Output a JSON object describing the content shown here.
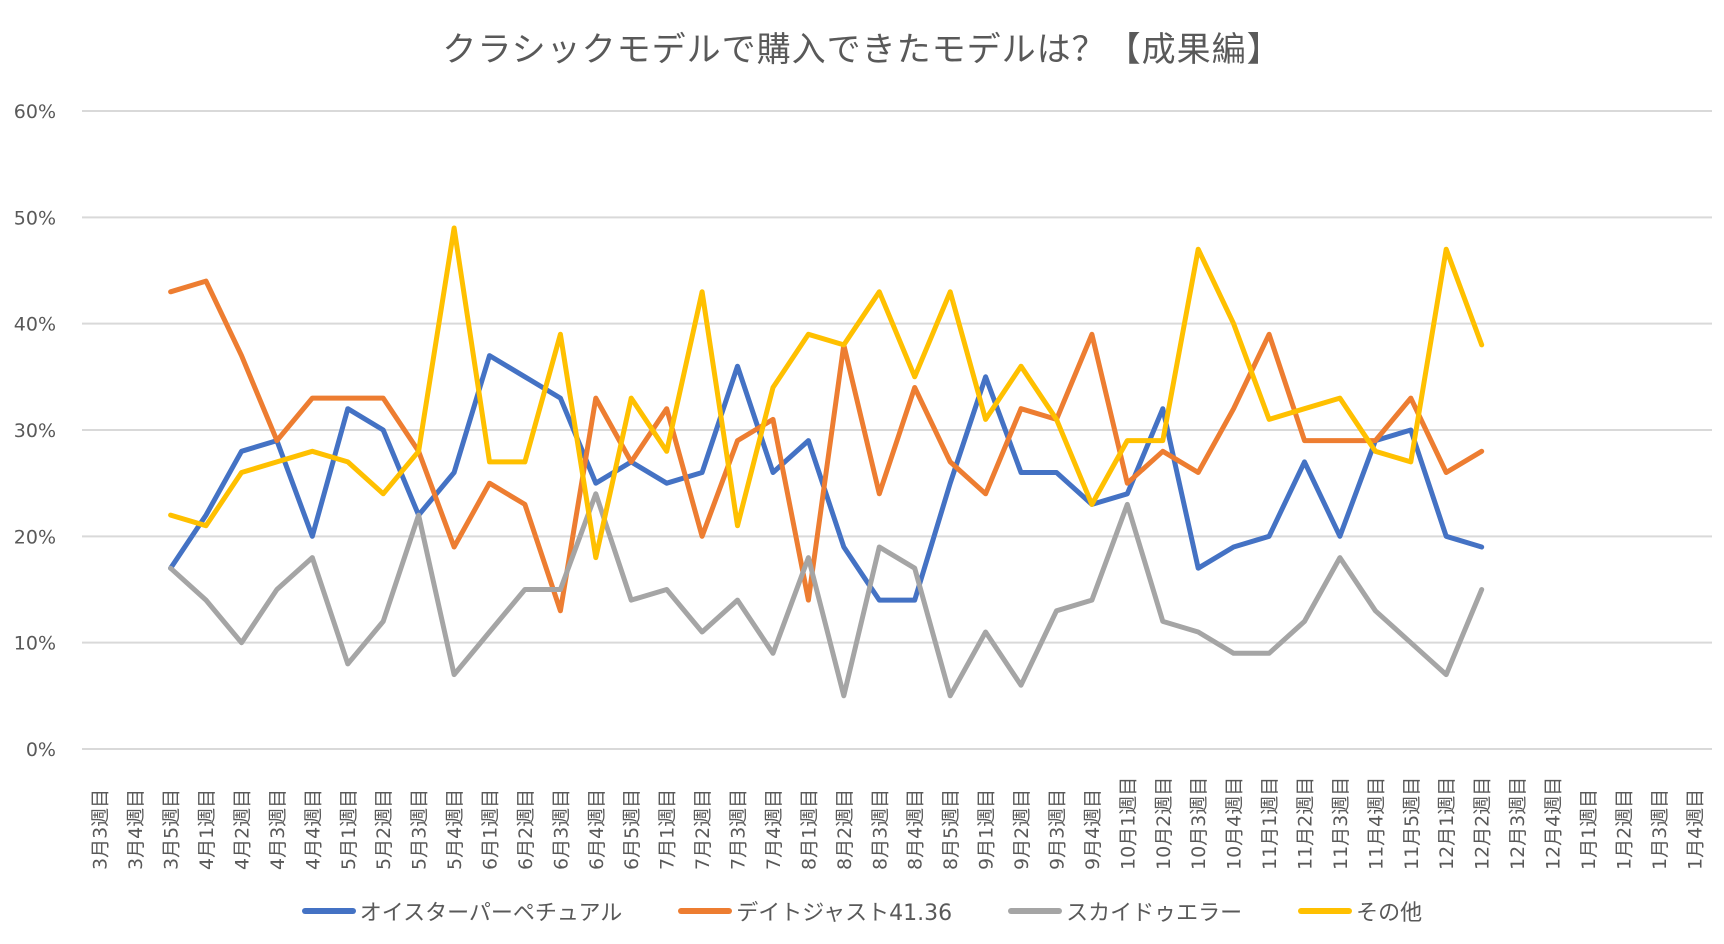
{
  "chart_data": {
    "type": "line",
    "title": "クラシックモデルで購入できたモデルは？【成果編】",
    "xlabel": "",
    "ylabel": "",
    "ylim": [
      0,
      0.6
    ],
    "yticks": [
      "0%",
      "10%",
      "20%",
      "30%",
      "40%",
      "50%",
      "60%"
    ],
    "ytick_values": [
      0,
      0.1,
      0.2,
      0.3,
      0.4,
      0.5,
      0.6
    ],
    "grid": true,
    "legend_position": "bottom",
    "categories": [
      "3月3週目",
      "3月4週目",
      "3月5週目",
      "4月1週目",
      "4月2週目",
      "4月3週目",
      "4月4週目",
      "5月1週目",
      "5月2週目",
      "5月3週目",
      "5月4週目",
      "6月1週目",
      "6月2週目",
      "6月3週目",
      "6月4週目",
      "6月5週目",
      "7月1週目",
      "7月2週目",
      "7月3週目",
      "7月4週目",
      "8月1週目",
      "8月2週目",
      "8月3週目",
      "8月4週目",
      "8月5週目",
      "9月1週目",
      "9月2週目",
      "9月3週目",
      "9月4週目",
      "10月1週目",
      "10月2週目",
      "10月3週目",
      "10月4週目",
      "11月1週目",
      "11月2週目",
      "11月3週目",
      "11月4週目",
      "11月5週目",
      "12月1週目",
      "12月2週目",
      "12月3週目",
      "12月4週目",
      "1月1週目",
      "1月2週目",
      "1月3週目",
      "1月4週目"
    ],
    "series": [
      {
        "name": "オイスターパーペチュアル",
        "color": "#4472C4",
        "values": [
          null,
          null,
          0.17,
          0.22,
          0.28,
          0.29,
          0.2,
          0.32,
          0.3,
          0.22,
          0.26,
          0.37,
          0.35,
          0.33,
          0.25,
          0.27,
          0.25,
          0.26,
          0.36,
          0.26,
          0.29,
          0.19,
          0.14,
          0.14,
          0.25,
          0.35,
          0.26,
          0.26,
          0.23,
          0.24,
          0.32,
          0.17,
          0.19,
          0.2,
          0.27,
          0.2,
          0.29,
          0.3,
          0.2,
          0.19,
          null,
          null,
          null,
          null,
          null,
          null
        ]
      },
      {
        "name": "デイトジャスト41.36",
        "color": "#ED7D31",
        "values": [
          null,
          null,
          0.43,
          0.44,
          0.37,
          0.29,
          0.33,
          0.33,
          0.33,
          0.28,
          0.19,
          0.25,
          0.23,
          0.13,
          0.33,
          0.27,
          0.32,
          0.2,
          0.29,
          0.31,
          0.14,
          0.38,
          0.24,
          0.34,
          0.27,
          0.24,
          0.32,
          0.31,
          0.39,
          0.25,
          0.28,
          0.26,
          0.32,
          0.39,
          0.29,
          0.29,
          0.29,
          0.33,
          0.26,
          0.28,
          null,
          null,
          null,
          null,
          null,
          null
        ]
      },
      {
        "name": "スカイドゥエラー",
        "color": "#A5A5A5",
        "values": [
          null,
          null,
          0.17,
          0.14,
          0.1,
          0.15,
          0.18,
          0.08,
          0.12,
          0.22,
          0.07,
          0.11,
          0.15,
          0.15,
          0.24,
          0.14,
          0.15,
          0.11,
          0.14,
          0.09,
          0.18,
          0.05,
          0.19,
          0.17,
          0.05,
          0.11,
          0.06,
          0.13,
          0.14,
          0.23,
          0.12,
          0.11,
          0.09,
          0.09,
          0.12,
          0.18,
          0.13,
          0.1,
          0.07,
          0.15,
          null,
          null,
          null,
          null,
          null,
          null
        ]
      },
      {
        "name": "その他",
        "color": "#FFC000",
        "values": [
          null,
          null,
          0.22,
          0.21,
          0.26,
          0.27,
          0.28,
          0.27,
          0.24,
          0.28,
          0.49,
          0.27,
          0.27,
          0.39,
          0.18,
          0.33,
          0.28,
          0.43,
          0.21,
          0.34,
          0.39,
          0.38,
          0.43,
          0.35,
          0.43,
          0.31,
          0.36,
          0.31,
          0.23,
          0.29,
          0.29,
          0.47,
          0.4,
          0.31,
          0.32,
          0.33,
          0.28,
          0.27,
          0.47,
          0.38,
          null,
          null,
          null,
          null,
          null,
          null
        ]
      }
    ]
  }
}
